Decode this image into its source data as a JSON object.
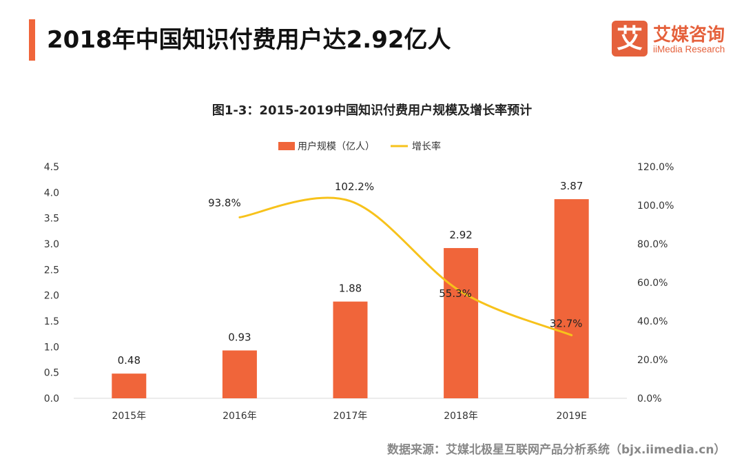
{
  "header": {
    "title": "2018年中国知识付费用户达2.92亿人",
    "accent_color": "#F0653A"
  },
  "logo": {
    "mark": "艾",
    "name": "艾媒咨询",
    "subtitle": "iiMedia Research",
    "color": "#E5613C"
  },
  "chart_title": "图1-3：2015-2019中国知识付费用户规模及增长率预计",
  "source": "数据来源：艾媒北极星互联网产品分析系统（bjx.iimedia.cn）",
  "chart_data": {
    "type": "bar",
    "categories": [
      "2015年",
      "2016年",
      "2017年",
      "2018年",
      "2019E"
    ],
    "series": [
      {
        "name": "用户规模（亿人）",
        "kind": "bar",
        "axis": "left",
        "color": "#F0653A",
        "values": [
          0.48,
          0.93,
          1.88,
          2.92,
          3.87
        ],
        "labels": [
          "0.48",
          "0.93",
          "1.88",
          "2.92",
          "3.87"
        ]
      },
      {
        "name": "增长率",
        "kind": "line",
        "axis": "right",
        "color": "#F7C21B",
        "values": [
          null,
          93.8,
          102.2,
          55.3,
          32.7
        ],
        "labels": [
          "",
          "93.8%",
          "102.2%",
          "55.3%",
          "32.7%"
        ]
      }
    ],
    "y_left": {
      "min": 0,
      "max": 4.5,
      "ticks": [
        "0.0",
        "0.5",
        "1.0",
        "1.5",
        "2.0",
        "2.5",
        "3.0",
        "3.5",
        "4.0",
        "4.5"
      ]
    },
    "y_right": {
      "min": 0,
      "max": 120,
      "ticks": [
        "0.0%",
        "20.0%",
        "40.0%",
        "60.0%",
        "80.0%",
        "100.0%",
        "120.0%"
      ]
    },
    "legend": "top-center",
    "grid": false
  }
}
